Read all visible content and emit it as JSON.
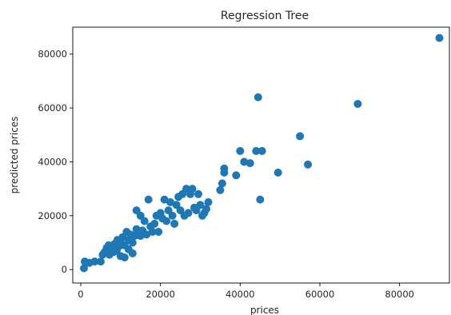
{
  "chart_data": {
    "type": "scatter",
    "title": "Regression Tree",
    "xlabel": "prices",
    "ylabel": "predicted prices",
    "xlim": [
      -2000,
      92500
    ],
    "ylim": [
      -5000,
      90000
    ],
    "xticks": [
      0,
      20000,
      40000,
      60000,
      80000
    ],
    "xtick_labels": [
      "0",
      "20000",
      "40000",
      "60000",
      "80000"
    ],
    "yticks": [
      0,
      20000,
      40000,
      60000,
      80000
    ],
    "ytick_labels": [
      "0",
      "20000",
      "40000",
      "60000",
      "80000"
    ],
    "grid": false,
    "legend": "none",
    "marker_color": "#1f77b4",
    "points": [
      {
        "x": 800,
        "y": 500
      },
      {
        "x": 1000,
        "y": 3000
      },
      {
        "x": 2200,
        "y": 2500
      },
      {
        "x": 3500,
        "y": 3000
      },
      {
        "x": 5000,
        "y": 3000
      },
      {
        "x": 5500,
        "y": 5500
      },
      {
        "x": 6000,
        "y": 6500
      },
      {
        "x": 6500,
        "y": 8000
      },
      {
        "x": 7000,
        "y": 9000
      },
      {
        "x": 7200,
        "y": 5500
      },
      {
        "x": 7500,
        "y": 7000
      },
      {
        "x": 8000,
        "y": 8500
      },
      {
        "x": 8200,
        "y": 6500
      },
      {
        "x": 8500,
        "y": 9500
      },
      {
        "x": 9000,
        "y": 7000
      },
      {
        "x": 9200,
        "y": 11000
      },
      {
        "x": 9500,
        "y": 8500
      },
      {
        "x": 10000,
        "y": 10000
      },
      {
        "x": 10000,
        "y": 5000
      },
      {
        "x": 10500,
        "y": 12000
      },
      {
        "x": 11000,
        "y": 9000
      },
      {
        "x": 11000,
        "y": 4500
      },
      {
        "x": 11500,
        "y": 14000
      },
      {
        "x": 12000,
        "y": 11000
      },
      {
        "x": 12000,
        "y": 7500
      },
      {
        "x": 12500,
        "y": 13000
      },
      {
        "x": 13000,
        "y": 10000
      },
      {
        "x": 13000,
        "y": 6000
      },
      {
        "x": 13500,
        "y": 12500
      },
      {
        "x": 14000,
        "y": 22000
      },
      {
        "x": 14000,
        "y": 15000
      },
      {
        "x": 14500,
        "y": 13500
      },
      {
        "x": 15000,
        "y": 20000
      },
      {
        "x": 15000,
        "y": 12500
      },
      {
        "x": 15500,
        "y": 14500
      },
      {
        "x": 16000,
        "y": 18000
      },
      {
        "x": 16500,
        "y": 13000
      },
      {
        "x": 17000,
        "y": 26000
      },
      {
        "x": 17500,
        "y": 16000
      },
      {
        "x": 18000,
        "y": 14000
      },
      {
        "x": 18500,
        "y": 17000
      },
      {
        "x": 19000,
        "y": 20000
      },
      {
        "x": 19500,
        "y": 14000
      },
      {
        "x": 20000,
        "y": 21000
      },
      {
        "x": 20500,
        "y": 19000
      },
      {
        "x": 21000,
        "y": 26000
      },
      {
        "x": 21500,
        "y": 18000
      },
      {
        "x": 22000,
        "y": 22000
      },
      {
        "x": 22500,
        "y": 25000
      },
      {
        "x": 23000,
        "y": 20000
      },
      {
        "x": 23500,
        "y": 17000
      },
      {
        "x": 24000,
        "y": 24000
      },
      {
        "x": 24500,
        "y": 27000
      },
      {
        "x": 25000,
        "y": 22000
      },
      {
        "x": 25500,
        "y": 28000
      },
      {
        "x": 26000,
        "y": 20000
      },
      {
        "x": 26500,
        "y": 30000
      },
      {
        "x": 27000,
        "y": 21000
      },
      {
        "x": 27500,
        "y": 28000
      },
      {
        "x": 28000,
        "y": 30000
      },
      {
        "x": 28500,
        "y": 23000
      },
      {
        "x": 29000,
        "y": 22000
      },
      {
        "x": 29500,
        "y": 28000
      },
      {
        "x": 30000,
        "y": 24000
      },
      {
        "x": 30500,
        "y": 20000
      },
      {
        "x": 31000,
        "y": 21000
      },
      {
        "x": 31500,
        "y": 22500
      },
      {
        "x": 32000,
        "y": 25000
      },
      {
        "x": 35000,
        "y": 29500
      },
      {
        "x": 35500,
        "y": 32000
      },
      {
        "x": 36000,
        "y": 36000
      },
      {
        "x": 36000,
        "y": 37500
      },
      {
        "x": 39000,
        "y": 35000
      },
      {
        "x": 40000,
        "y": 44000
      },
      {
        "x": 41000,
        "y": 40000
      },
      {
        "x": 42500,
        "y": 39500
      },
      {
        "x": 44000,
        "y": 44000
      },
      {
        "x": 44500,
        "y": 64000
      },
      {
        "x": 45000,
        "y": 26000
      },
      {
        "x": 45500,
        "y": 44000
      },
      {
        "x": 49500,
        "y": 36000
      },
      {
        "x": 55000,
        "y": 49500
      },
      {
        "x": 57000,
        "y": 39000
      },
      {
        "x": 69500,
        "y": 61500
      },
      {
        "x": 90000,
        "y": 86000
      }
    ]
  }
}
